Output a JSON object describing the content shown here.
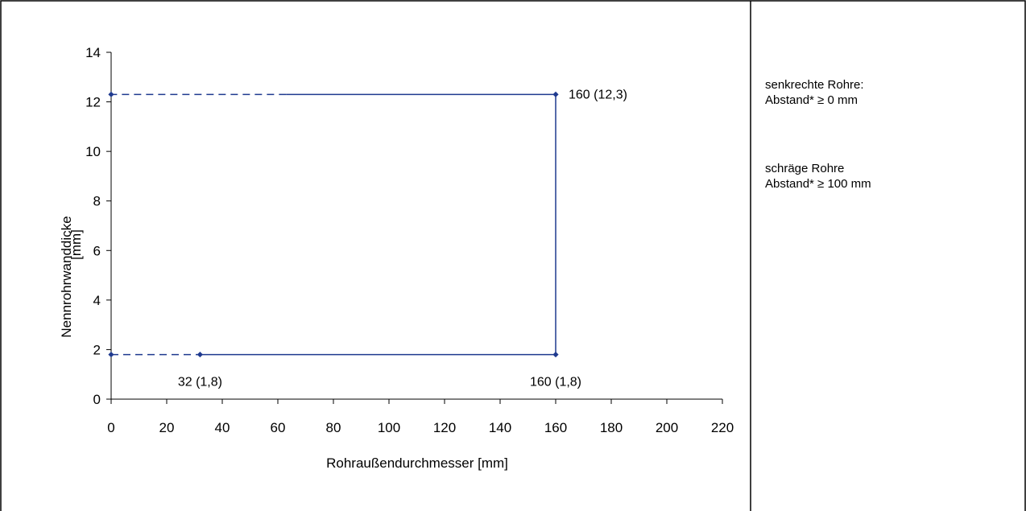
{
  "chart_data": {
    "type": "line",
    "xlabel": "Rohraußendurchmesser [mm]",
    "ylabel_line1": "Nennrohrwanddicke",
    "ylabel_line2": "[mm]",
    "xlim": [
      0,
      220
    ],
    "ylim": [
      0,
      14
    ],
    "x_ticks": [
      0,
      20,
      40,
      60,
      80,
      100,
      120,
      140,
      160,
      180,
      200,
      220
    ],
    "y_ticks": [
      0,
      2,
      4,
      6,
      8,
      10,
      12,
      14
    ],
    "grid": false,
    "series_color": "#1f3a8f",
    "segments": [
      {
        "style": "dashed",
        "points": [
          [
            0,
            1.8
          ],
          [
            32,
            1.8
          ]
        ]
      },
      {
        "style": "solid",
        "points": [
          [
            32,
            1.8
          ],
          [
            160,
            1.8
          ],
          [
            160,
            12.3
          ],
          [
            63,
            12.3
          ]
        ]
      },
      {
        "style": "dashed",
        "points": [
          [
            63,
            12.3
          ],
          [
            0,
            12.3
          ]
        ]
      }
    ],
    "markers": [
      [
        0,
        1.8
      ],
      [
        32,
        1.8
      ],
      [
        160,
        1.8
      ],
      [
        160,
        12.3
      ],
      [
        0,
        12.3
      ]
    ],
    "annotations": [
      {
        "x": 32,
        "y": 1.8,
        "text": "32 (1,8)",
        "placement": "below"
      },
      {
        "x": 160,
        "y": 1.8,
        "text": "160 (1,8)",
        "placement": "below"
      },
      {
        "x": 160,
        "y": 12.3,
        "text": "160 (12,3)",
        "placement": "right"
      }
    ]
  },
  "notes": {
    "vertical_title": "senkrechte Rohre:",
    "vertical_value": "Abstand* ≥ 0 mm",
    "inclined_title": "schräge Rohre",
    "inclined_value": "Abstand* ≥ 100 mm"
  }
}
